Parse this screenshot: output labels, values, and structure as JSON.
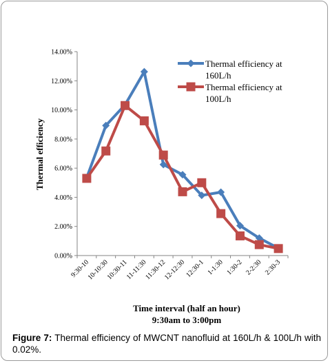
{
  "chart_data": {
    "type": "line",
    "categories": [
      "9:30-10",
      "10-10:30",
      "10:30-11",
      "11-11:30",
      "11:30-12",
      "12-12:30",
      "12:30-1",
      "1-1:30",
      "1:30-2",
      "2-2:30",
      "2:30-3"
    ],
    "series": [
      {
        "name": "Thermal efficiency at 160L/h",
        "name_lines": [
          "Thermal efficiency at",
          "160L/h"
        ],
        "values": [
          0.0535,
          0.0893,
          0.1035,
          0.1262,
          0.0625,
          0.0555,
          0.0413,
          0.0435,
          0.0205,
          0.012,
          0.005
        ],
        "color": "#4a7ebb",
        "marker": "diamond"
      },
      {
        "name": "Thermal efficiency at 100L/h",
        "name_lines": [
          "Thermal efficiency at",
          "100L/h"
        ],
        "values": [
          0.053,
          0.0718,
          0.103,
          0.0925,
          0.069,
          0.0438,
          0.05,
          0.0288,
          0.0135,
          0.0075,
          0.0048
        ],
        "color": "#be4b48",
        "marker": "square"
      }
    ],
    "yticks": [
      "0.00%",
      "2.00%",
      "4.00%",
      "6.00%",
      "8.00%",
      "10.00%",
      "12.00%",
      "14.00%"
    ],
    "ylim": [
      0,
      0.14
    ],
    "ylabel": "Thermal efficiency",
    "xlabel_lines": [
      "Time interval (half an hour)",
      "9:30am to 3:00pm"
    ],
    "legend_position": "top-right",
    "grid": false
  },
  "caption": {
    "label": "Figure 7:",
    "text": " Thermal efficiency of MWCNT nanofluid at 160L/h & 100L/h with 0.02%."
  }
}
